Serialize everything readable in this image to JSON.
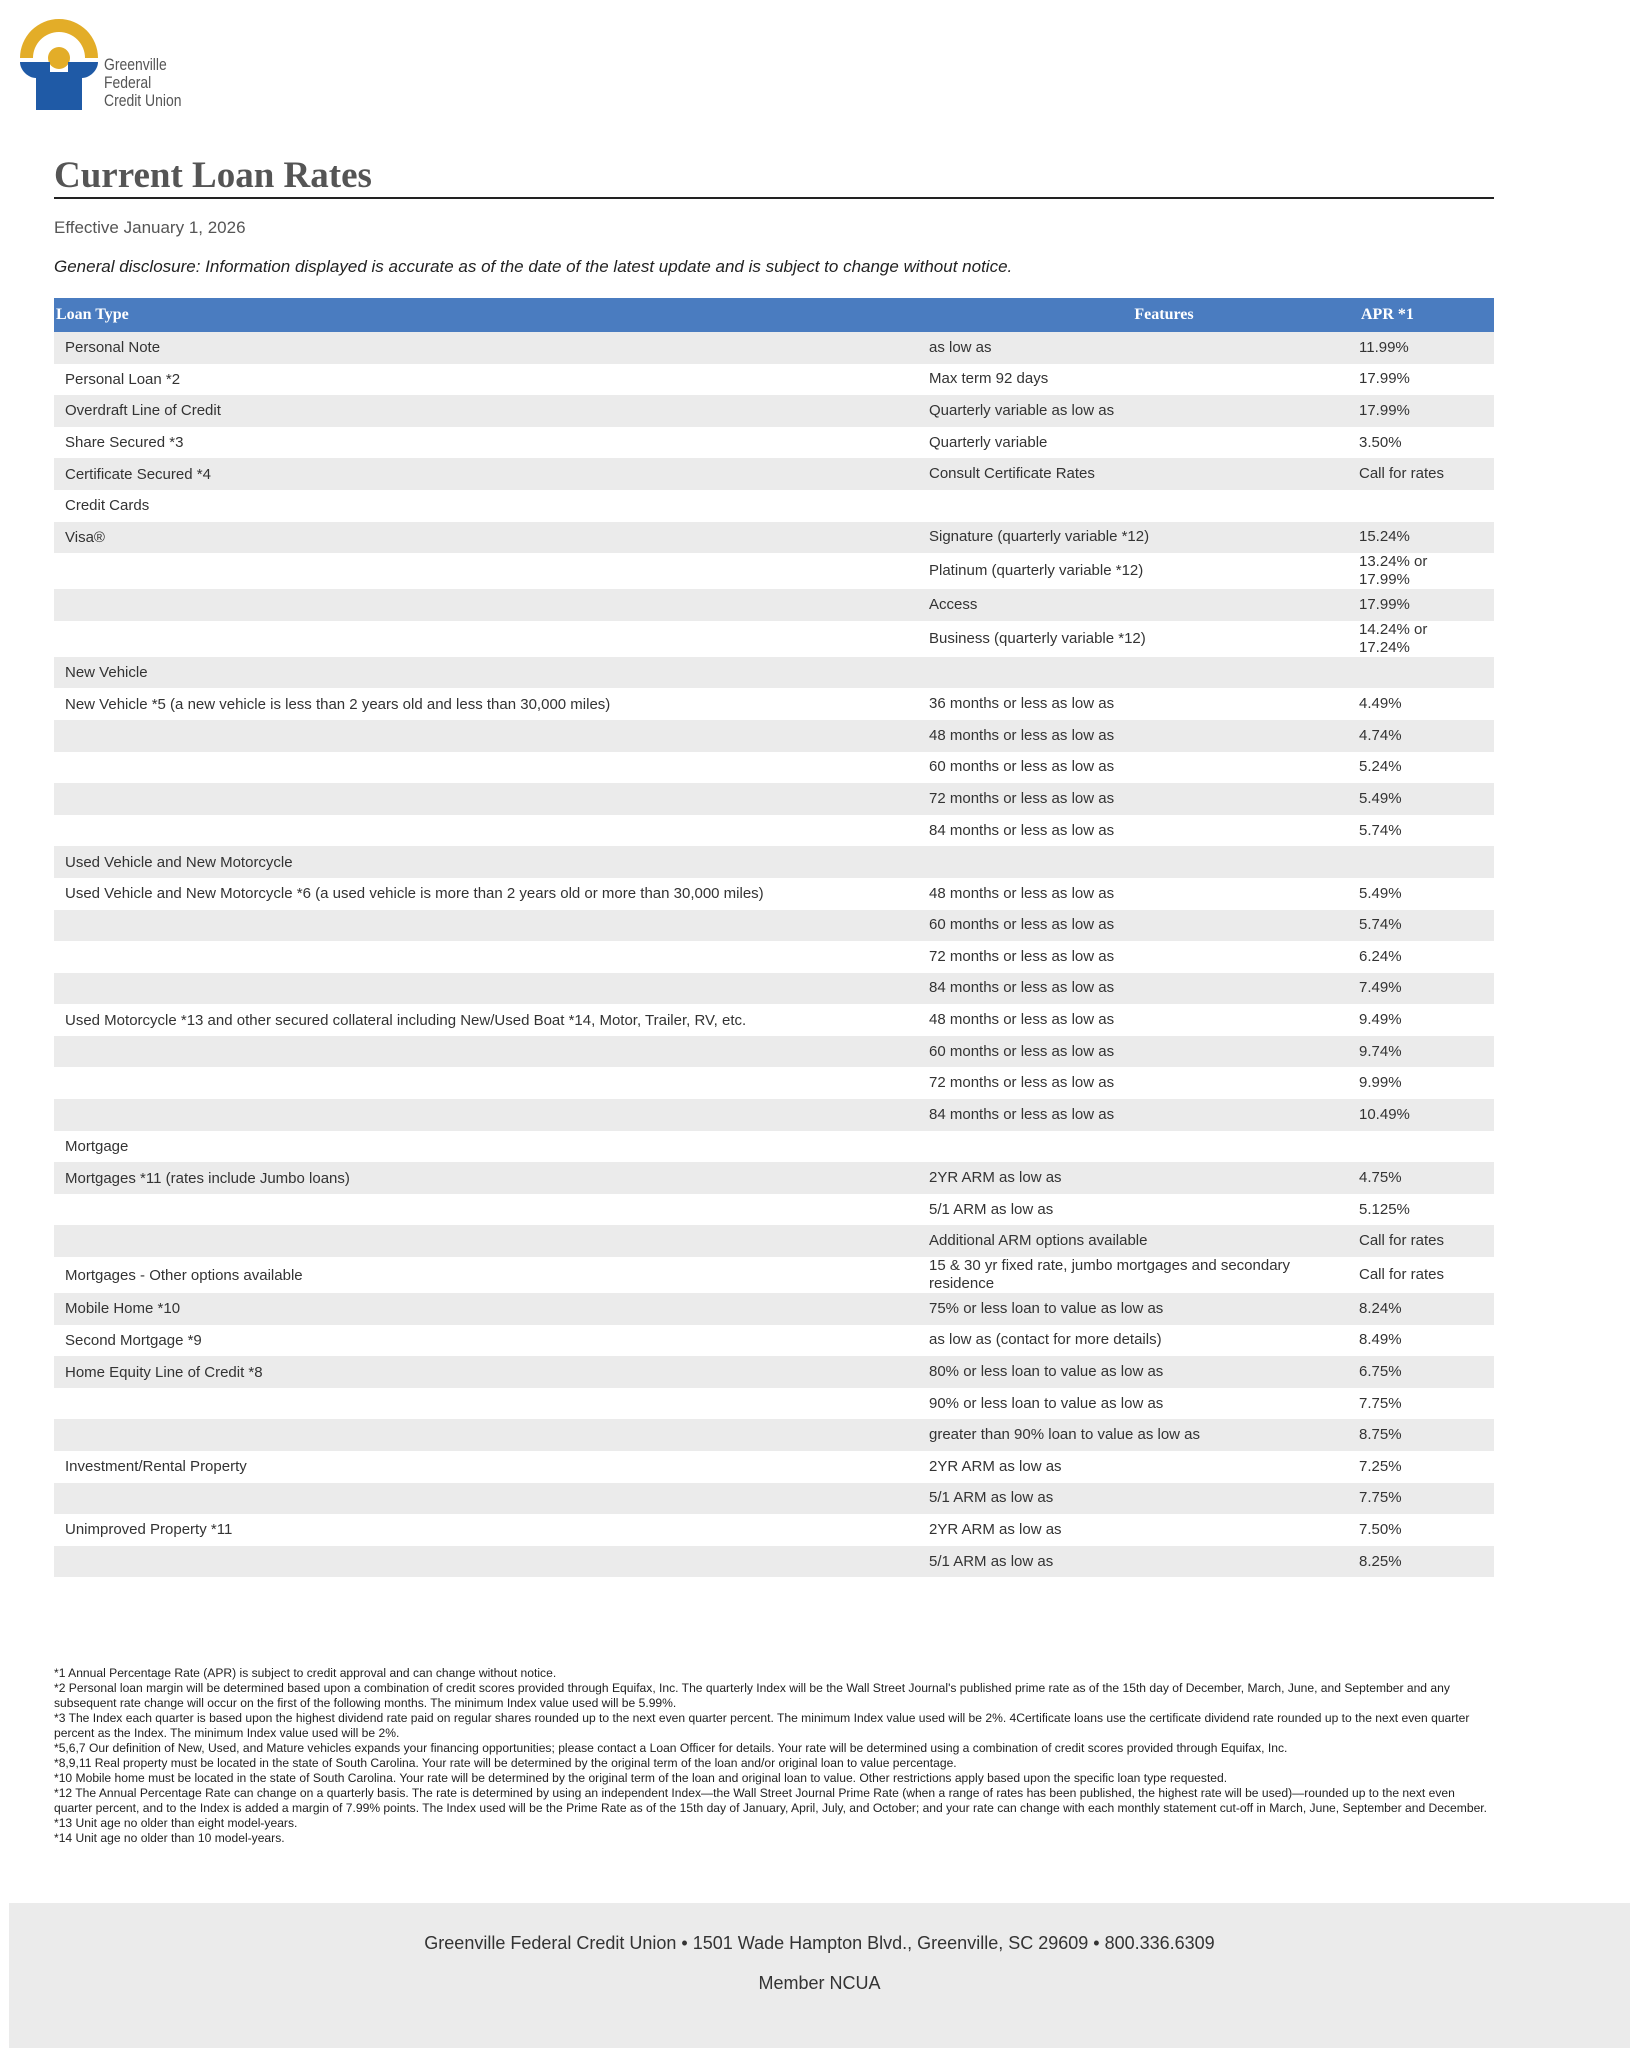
{
  "logo": {
    "lines": [
      "Greenville",
      "Federal",
      "Credit Union"
    ]
  },
  "title": "Current Loan Rates",
  "effective": "Effective January 1, 2026",
  "disclosure": "General disclosure: Information displayed is accurate as of the date of the latest update and is subject to change without notice.",
  "table": {
    "header": [
      "Loan Type",
      "Features",
      "APR *1"
    ],
    "rows": [
      [
        "Personal Note",
        "as low as",
        "11.99%"
      ],
      [
        "Personal Loan *2",
        "Max term 92 days",
        "17.99%"
      ],
      [
        "Overdraft Line of Credit",
        "Quarterly variable as low as",
        "17.99%"
      ],
      [
        "Share Secured *3",
        "Quarterly variable",
        "3.50%"
      ],
      [
        "Certificate Secured *4",
        "Consult Certificate Rates",
        "Call for rates"
      ],
      [
        "Credit Cards",
        null,
        null
      ],
      [
        "Visa®",
        "Signature (quarterly variable *12)",
        "15.24%"
      ],
      [
        null,
        "Platinum (quarterly variable *12)",
        "13.24% or 17.99%"
      ],
      [
        null,
        "Access",
        "17.99%"
      ],
      [
        null,
        "Business (quarterly variable *12)",
        "14.24% or 17.24%"
      ],
      [
        "New Vehicle",
        null,
        null
      ],
      [
        "New Vehicle *5 (a new vehicle is less than 2 years old and less than 30,000 miles)",
        "36 months or less as low as",
        "4.49%"
      ],
      [
        null,
        "48 months or less as low as",
        "4.74%"
      ],
      [
        null,
        "60 months or less as low as",
        "5.24%"
      ],
      [
        null,
        "72 months or less as low as",
        "5.49%"
      ],
      [
        null,
        "84 months or less as low as",
        "5.74%"
      ],
      [
        "Used Vehicle and New Motorcycle",
        null,
        null
      ],
      [
        "Used Vehicle and New Motorcycle *6 (a used vehicle is more than 2 years old or more than 30,000 miles)",
        "48 months or less as low as",
        "5.49%"
      ],
      [
        null,
        "60 months or less as low as",
        "5.74%"
      ],
      [
        null,
        "72 months or less as low as",
        "6.24%"
      ],
      [
        null,
        "84 months or less as low as",
        "7.49%"
      ],
      [
        "Used Motorcycle *13 and other secured collateral including New/Used Boat *14, Motor, Trailer, RV, etc.",
        "48 months or less as low as",
        "9.49%"
      ],
      [
        null,
        "60 months or less as low as",
        "9.74%"
      ],
      [
        null,
        "72 months or less as low as",
        "9.99%"
      ],
      [
        null,
        "84 months or less as low as",
        "10.49%"
      ],
      [
        "Mortgage",
        null,
        null
      ],
      [
        "Mortgages *11 (rates include Jumbo loans)",
        "2YR ARM as low as",
        "4.75%"
      ],
      [
        null,
        "5/1 ARM as low as",
        "5.125%"
      ],
      [
        null,
        "Additional ARM options available",
        "Call for rates"
      ],
      [
        "Mortgages - Other options available",
        "15 & 30 yr fixed rate, jumbo mortgages and secondary residence",
        "Call for rates"
      ],
      [
        "Mobile Home *10",
        "75% or less loan to value as low as",
        "8.24%"
      ],
      [
        "Second Mortgage *9",
        "as low as (contact for more details)",
        "8.49%"
      ],
      [
        "Home Equity Line of Credit *8",
        "80% or less loan to value as low as",
        "6.75%"
      ],
      [
        null,
        "90% or less loan to value as low as",
        "7.75%"
      ],
      [
        null,
        "greater than 90% loan to value as low as",
        "8.75%"
      ],
      [
        "Investment/Rental Property",
        "2YR ARM as low as",
        "7.25%"
      ],
      [
        null,
        "5/1 ARM as low as",
        "7.75%"
      ],
      [
        "Unimproved Property *11",
        "2YR ARM as low as",
        "7.50%"
      ],
      [
        null,
        "5/1 ARM as low as",
        "8.25%"
      ]
    ]
  },
  "footnotes": [
    "*1 Annual Percentage Rate (APR) is subject to credit approval and can change without notice.",
    "*2 Personal loan margin will be determined based upon a combination of credit scores provided through Equifax, Inc. The quarterly Index will be the Wall Street Journal's published prime rate as of the 15th day of December, March, June, and September and any subsequent rate change will occur on the first of the following months. The minimum Index value used will be 5.99%.",
    "*3 The Index each quarter is based upon the highest dividend rate paid on regular shares rounded up to the next even quarter percent. The minimum Index value used will be 2%. 4Certificate loans use the certificate dividend rate rounded up to the next even quarter percent as the Index. The minimum Index value used will be 2%.",
    "*5,6,7 Our definition of New, Used, and Mature vehicles expands your financing opportunities; please contact a Loan Officer for details. Your rate will be determined using a combination of credit scores provided through Equifax, Inc.",
    "*8,9,11 Real property must be located in the state of South Carolina. Your rate will be determined by the original term of the loan and/or original loan to value percentage.",
    "*10 Mobile home must be located in the state of South Carolina. Your rate will be determined by the original term of the loan and original loan to value. Other restrictions apply based upon the specific loan type requested.",
    "*12 The Annual Percentage Rate can change on a quarterly basis. The rate is determined by using an independent Index—the Wall Street Journal Prime Rate (when a range of rates has been published, the highest rate will be used)—rounded up to the next even quarter percent, and to the Index is added a margin of 7.99% points. The Index used will be the Prime Rate as of the 15th day of January, April, July, and October; and your rate can change with each monthly statement cut-off in March, June, September and December.",
    "*13 Unit age no older than eight model-years.",
    "*14 Unit age no older than 10 model-years."
  ],
  "footer": {
    "address": "Greenville Federal Credit Union • 1501 Wade Hampton Blvd., Greenville, SC 29609 • 800.336.6309",
    "member": "Member NCUA"
  }
}
